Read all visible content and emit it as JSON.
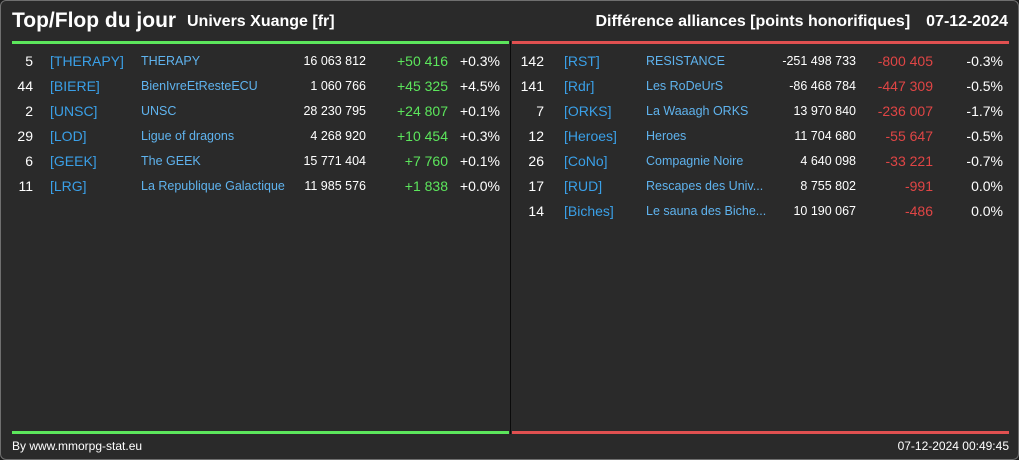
{
  "header": {
    "title": "Top/Flop du jour",
    "universe": "Univers Xuange [fr]",
    "subject": "Différence alliances [points honorifiques]",
    "date": "07-12-2024"
  },
  "colors": {
    "positive": "#5ce65c",
    "negative": "#e04545",
    "tag": "#3aa0e8"
  },
  "top": [
    {
      "rank": "5",
      "tag": "[THERAPY]",
      "name": "THERAPY",
      "points": "16 063 812",
      "diff": "+50 416",
      "pct": "+0.3%"
    },
    {
      "rank": "44",
      "tag": "[BIERE]",
      "name": "BienIvreEtResteECU",
      "points": "1 060 766",
      "diff": "+45 325",
      "pct": "+4.5%"
    },
    {
      "rank": "2",
      "tag": "[UNSC]",
      "name": "UNSC",
      "points": "28 230 795",
      "diff": "+24 807",
      "pct": "+0.1%"
    },
    {
      "rank": "29",
      "tag": "[LOD]",
      "name": "Ligue of dragons",
      "points": "4 268 920",
      "diff": "+10 454",
      "pct": "+0.3%"
    },
    {
      "rank": "6",
      "tag": "[GEEK]",
      "name": "The GEEK",
      "points": "15 771 404",
      "diff": "+7 760",
      "pct": "+0.1%"
    },
    {
      "rank": "11",
      "tag": "[LRG]",
      "name": "La Republique Galactique",
      "points": "11 985 576",
      "diff": "+1 838",
      "pct": "+0.0%"
    }
  ],
  "flop": [
    {
      "rank": "142",
      "tag": "[RST]",
      "name": "RESISTANCE",
      "points": "-251 498 733",
      "diff": "-800 405",
      "pct": "-0.3%"
    },
    {
      "rank": "141",
      "tag": "[Rdr]",
      "name": "Les RoDeUrS",
      "points": "-86 468 784",
      "diff": "-447 309",
      "pct": "-0.5%"
    },
    {
      "rank": "7",
      "tag": "[ORKS]",
      "name": "La Waaagh ORKS",
      "points": "13 970 840",
      "diff": "-236 007",
      "pct": "-1.7%"
    },
    {
      "rank": "12",
      "tag": "[Heroes]",
      "name": "Heroes",
      "points": "11 704 680",
      "diff": "-55 647",
      "pct": "-0.5%"
    },
    {
      "rank": "26",
      "tag": "[CoNo]",
      "name": "Compagnie Noire",
      "points": "4 640 098",
      "diff": "-33 221",
      "pct": "-0.7%"
    },
    {
      "rank": "17",
      "tag": "[RUD]",
      "name": "Rescapes des Univ...",
      "points": "8 755 802",
      "diff": "-991",
      "pct": "0.0%"
    },
    {
      "rank": "14",
      "tag": "[Biches]",
      "name": "Le sauna des Biche...",
      "points": "10 190 067",
      "diff": "-486",
      "pct": "0.0%"
    }
  ],
  "footer": {
    "credit": "By www.mmorpg-stat.eu",
    "timestamp": "07-12-2024 00:49:45"
  }
}
